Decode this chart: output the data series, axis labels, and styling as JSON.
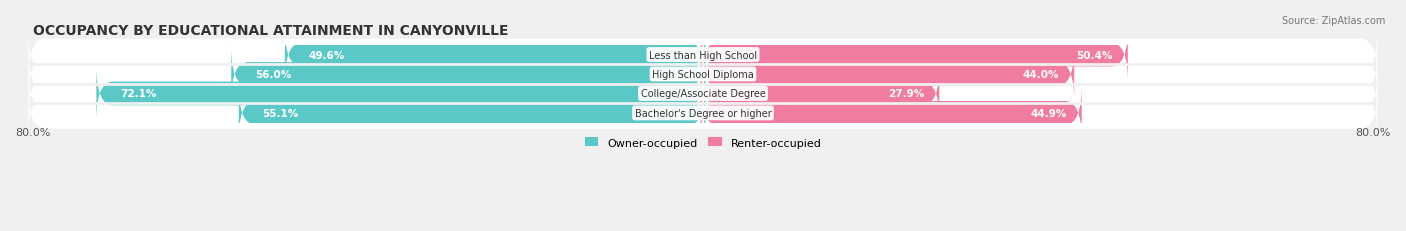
{
  "title": "OCCUPANCY BY EDUCATIONAL ATTAINMENT IN CANYONVILLE",
  "source": "Source: ZipAtlas.com",
  "categories": [
    "Less than High School",
    "High School Diploma",
    "College/Associate Degree",
    "Bachelor's Degree or higher"
  ],
  "owner_values": [
    49.6,
    56.0,
    72.1,
    55.1
  ],
  "renter_values": [
    50.4,
    44.0,
    27.9,
    44.9
  ],
  "owner_color": "#5bc8c8",
  "renter_color": "#f07ca0",
  "axis_min": -80.0,
  "axis_max": 80.0,
  "background_color": "#f0f0f0",
  "bar_background": "#e0e0e0",
  "title_fontsize": 10,
  "label_fontsize": 7.5,
  "tick_fontsize": 8,
  "legend_fontsize": 8
}
